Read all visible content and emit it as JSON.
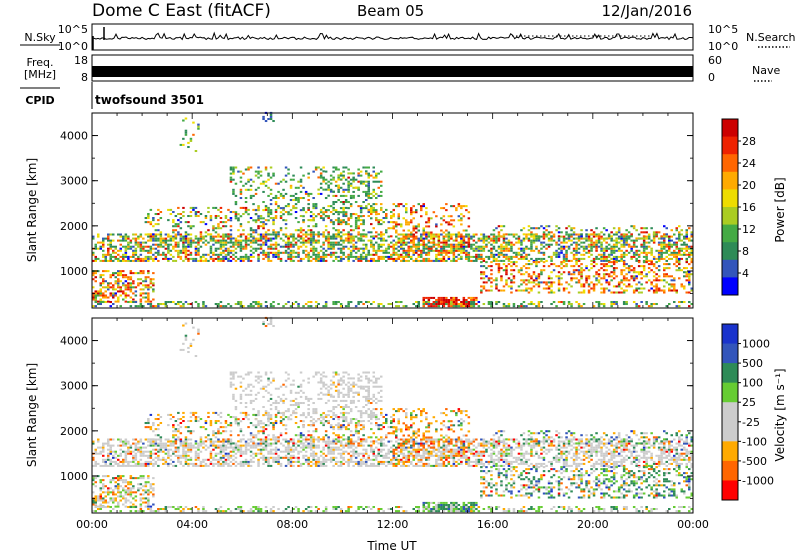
{
  "header": {
    "station": "Dome C East (fitACF)",
    "beam": "Beam 05",
    "date": "12/Jan/2016"
  },
  "panels": {
    "nsky": {
      "left_label": "N.Sky",
      "right_label": "N.Search",
      "left_ticks": [
        "10^5",
        "10^0"
      ],
      "right_ticks": [
        "10^5",
        "10^0"
      ]
    },
    "freq": {
      "left_label_1": "Freq.",
      "left_label_2": "[MHz]",
      "right_label": "Nave",
      "left_ticks": [
        "18",
        "8"
      ],
      "right_ticks": [
        "60",
        "0"
      ]
    },
    "cpid": {
      "label": "CPID",
      "value": "twofsound 3501"
    }
  },
  "colors": {
    "power_scale": [
      "#0000ff",
      "#3355bb",
      "#2e8b57",
      "#44aa44",
      "#aacc22",
      "#eedd00",
      "#ffaa00",
      "#ff6600",
      "#ee2200",
      "#cc0000"
    ],
    "velocity_scale": [
      "#ff0000",
      "#ff6600",
      "#ffaa00",
      "#cccccc",
      "#cccccc",
      "#66cc33",
      "#2e8b57",
      "#3355bb",
      "#1a33cc"
    ]
  },
  "chart_data": [
    {
      "type": "heatmap",
      "name": "power",
      "ylabel": "Slant Range [km]",
      "xlabel": "",
      "y_ticks": [
        "1000",
        "2000",
        "3000",
        "4000"
      ],
      "ylim": [
        180,
        4500
      ],
      "x_ticks": [
        "00:00",
        "04:00",
        "08:00",
        "12:00",
        "16:00",
        "20:00",
        "00:00"
      ],
      "xlim_hours": [
        0,
        24
      ],
      "colorbar": {
        "label": "Power [dB]",
        "ticks": [
          "28",
          "24",
          "20",
          "16",
          "12",
          "8",
          "4"
        ],
        "range": [
          0,
          30
        ]
      }
    },
    {
      "type": "heatmap",
      "name": "velocity",
      "ylabel": "Slant Range [km]",
      "xlabel": "Time UT",
      "y_ticks": [
        "1000",
        "2000",
        "3000",
        "4000"
      ],
      "ylim": [
        180,
        4500
      ],
      "x_ticks": [
        "00:00",
        "04:00",
        "08:00",
        "12:00",
        "16:00",
        "20:00",
        "00:00"
      ],
      "xlim_hours": [
        0,
        24
      ],
      "colorbar": {
        "label": "Velocity [m s⁻¹]",
        "ticks": [
          "1000",
          "500",
          "100",
          "25",
          "-25",
          "-100",
          "-500",
          "-1000"
        ]
      }
    }
  ]
}
